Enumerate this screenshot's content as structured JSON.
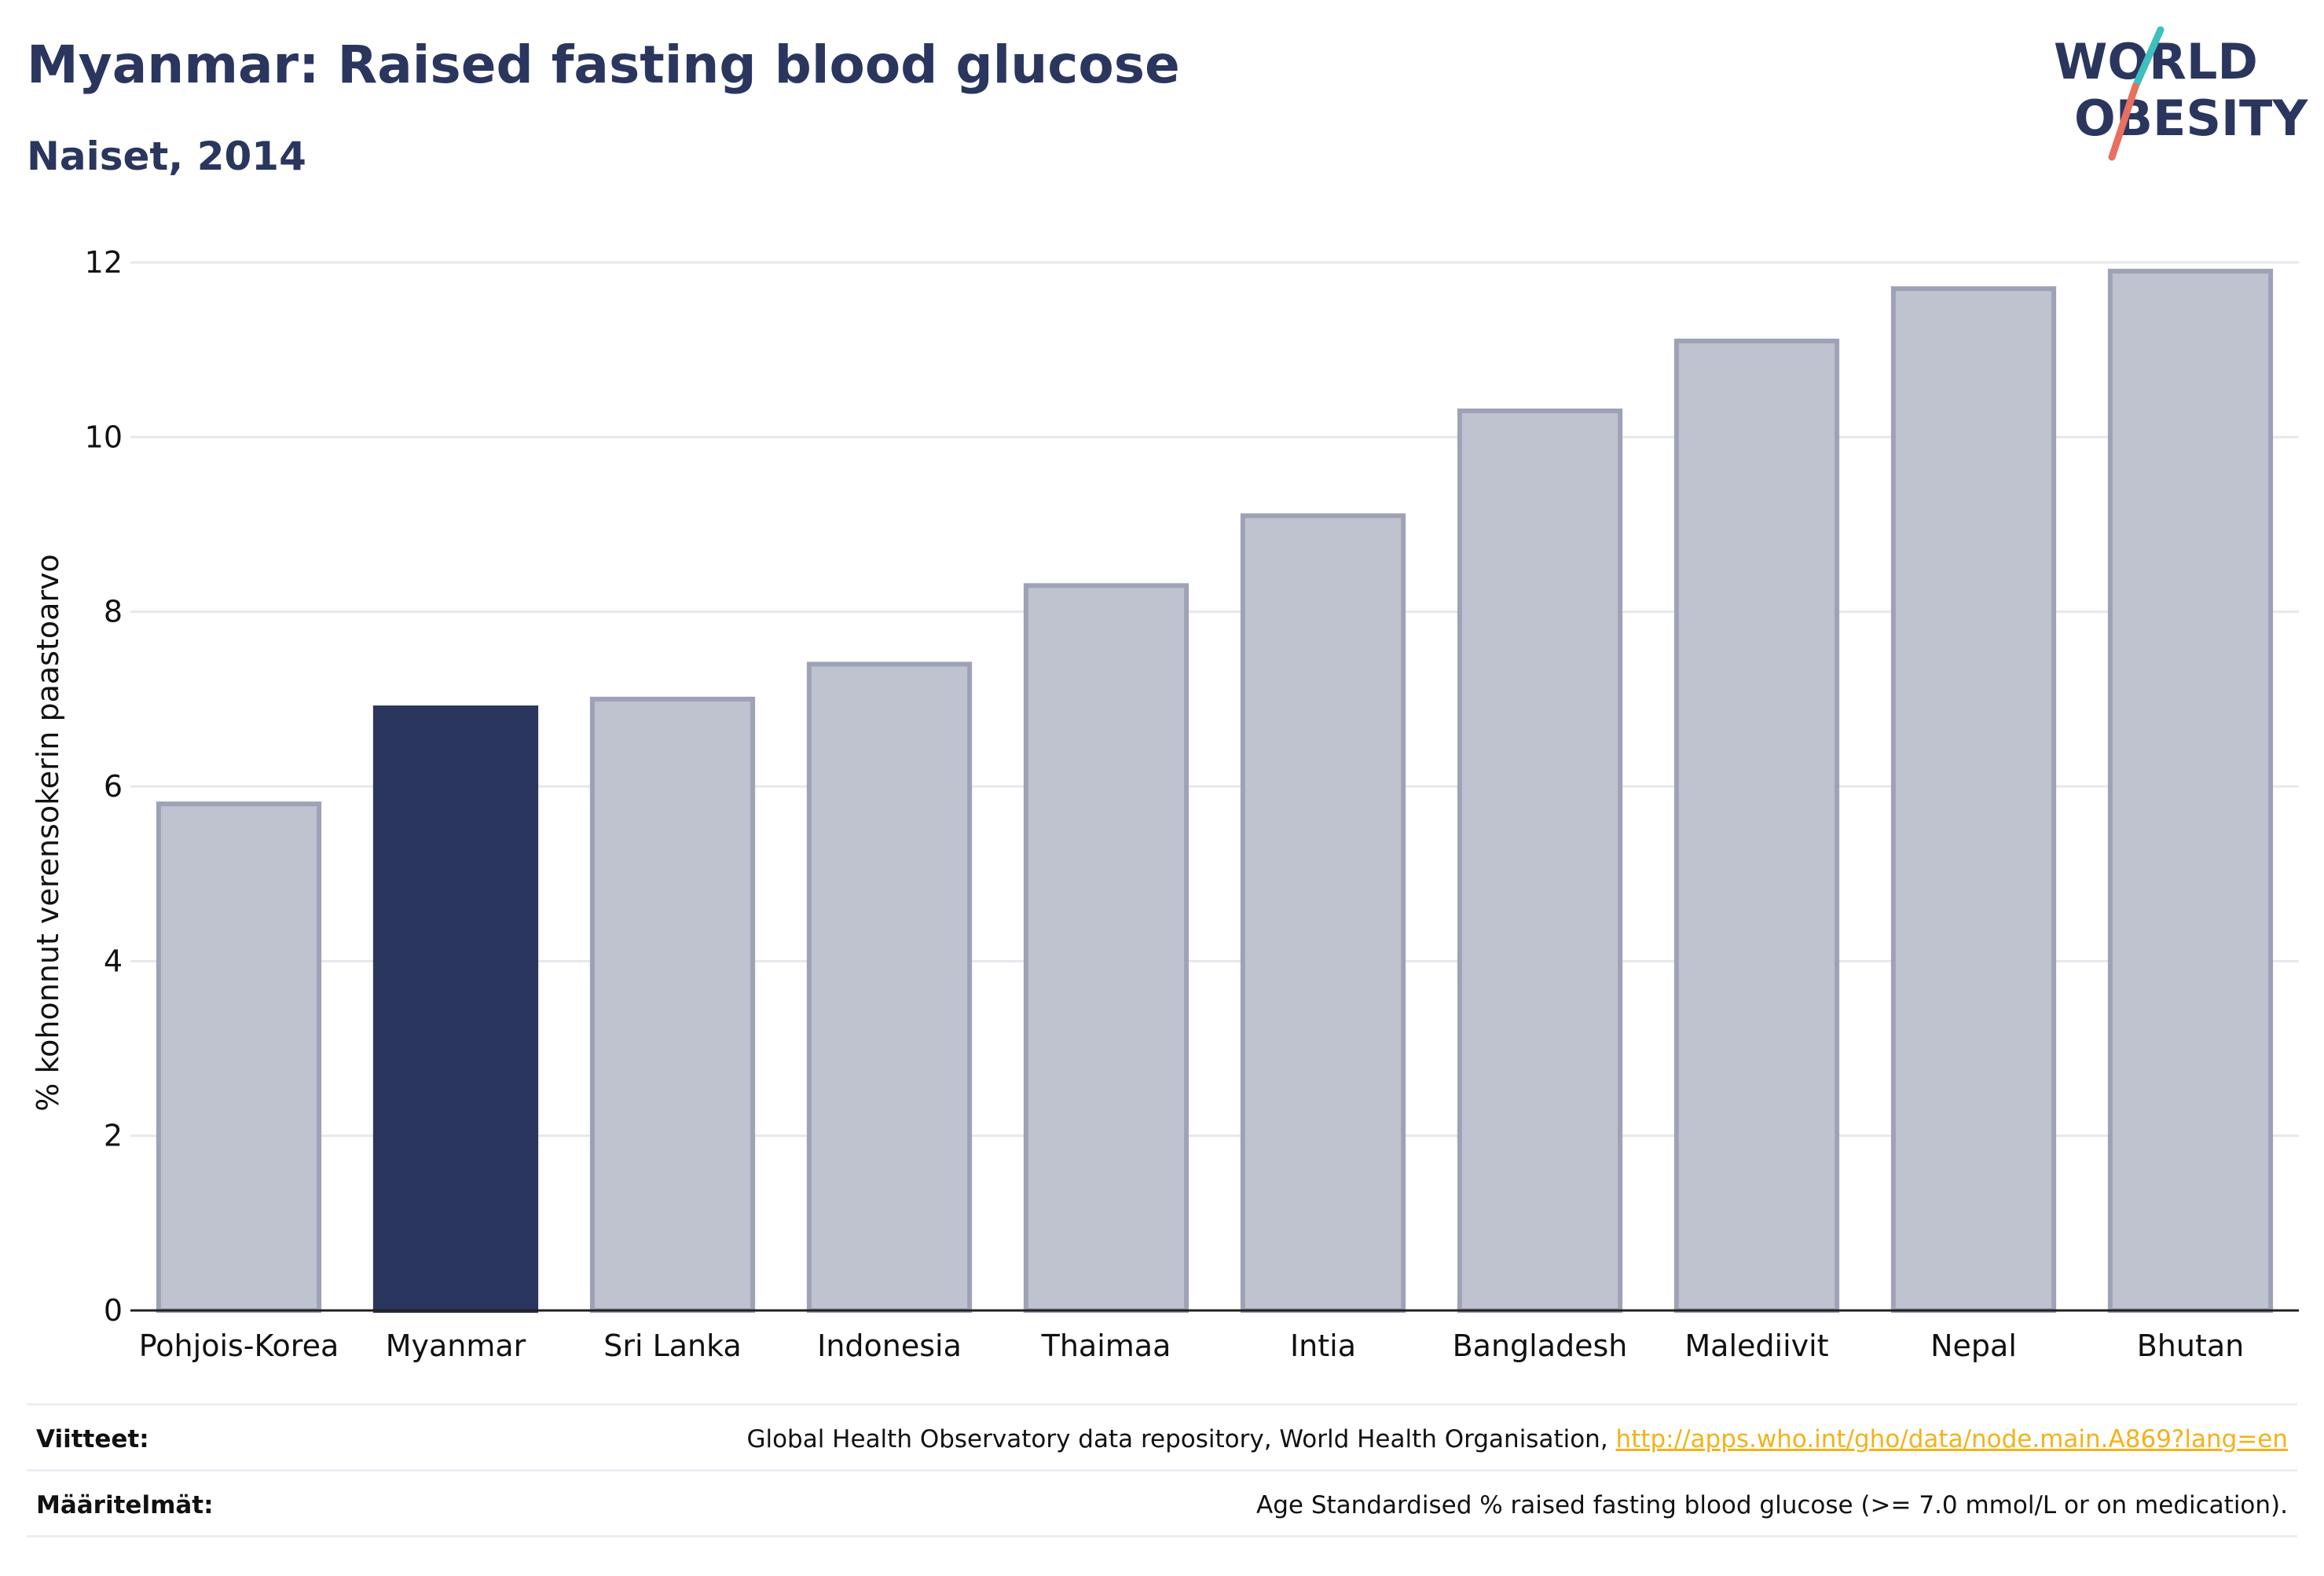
{
  "header": {
    "title": "Myanmar: Raised fasting blood glucose",
    "subtitle": "Naiset, 2014"
  },
  "logo": {
    "line1": "WORLD",
    "line2": "OBESITY"
  },
  "chart_data": {
    "type": "bar",
    "categories": [
      "Pohjois-Korea",
      "Myanmar",
      "Sri Lanka",
      "Indonesia",
      "Thaimaa",
      "Intia",
      "Bangladesh",
      "Malediivit",
      "Nepal",
      "Bhutan"
    ],
    "values": [
      5.8,
      6.9,
      7.0,
      7.4,
      8.3,
      9.1,
      10.3,
      11.1,
      11.7,
      11.9
    ],
    "highlight": "Myanmar",
    "ylabel": "% kohonnut verensokerin paastoarvo",
    "xlabel": "",
    "ylim": [
      0,
      12
    ],
    "yticks": [
      0,
      2,
      4,
      6,
      8,
      10,
      12
    ],
    "grid": true,
    "colors": {
      "bar": "#bfc2cf",
      "bar_edge": "#9ea2b6",
      "highlight": "#2a365e"
    }
  },
  "footer": {
    "sources_label": "Viitteet:",
    "sources_text": "Global Health Observatory data repository, World Health Organisation, ",
    "sources_link": "http://apps.who.int/gho/data/node.main.A869?lang=en",
    "definitions_label": "Määritelmät:",
    "definitions_text": "Age Standardised % raised fasting blood glucose (>= 7.0 mmol/L or on medication)."
  }
}
